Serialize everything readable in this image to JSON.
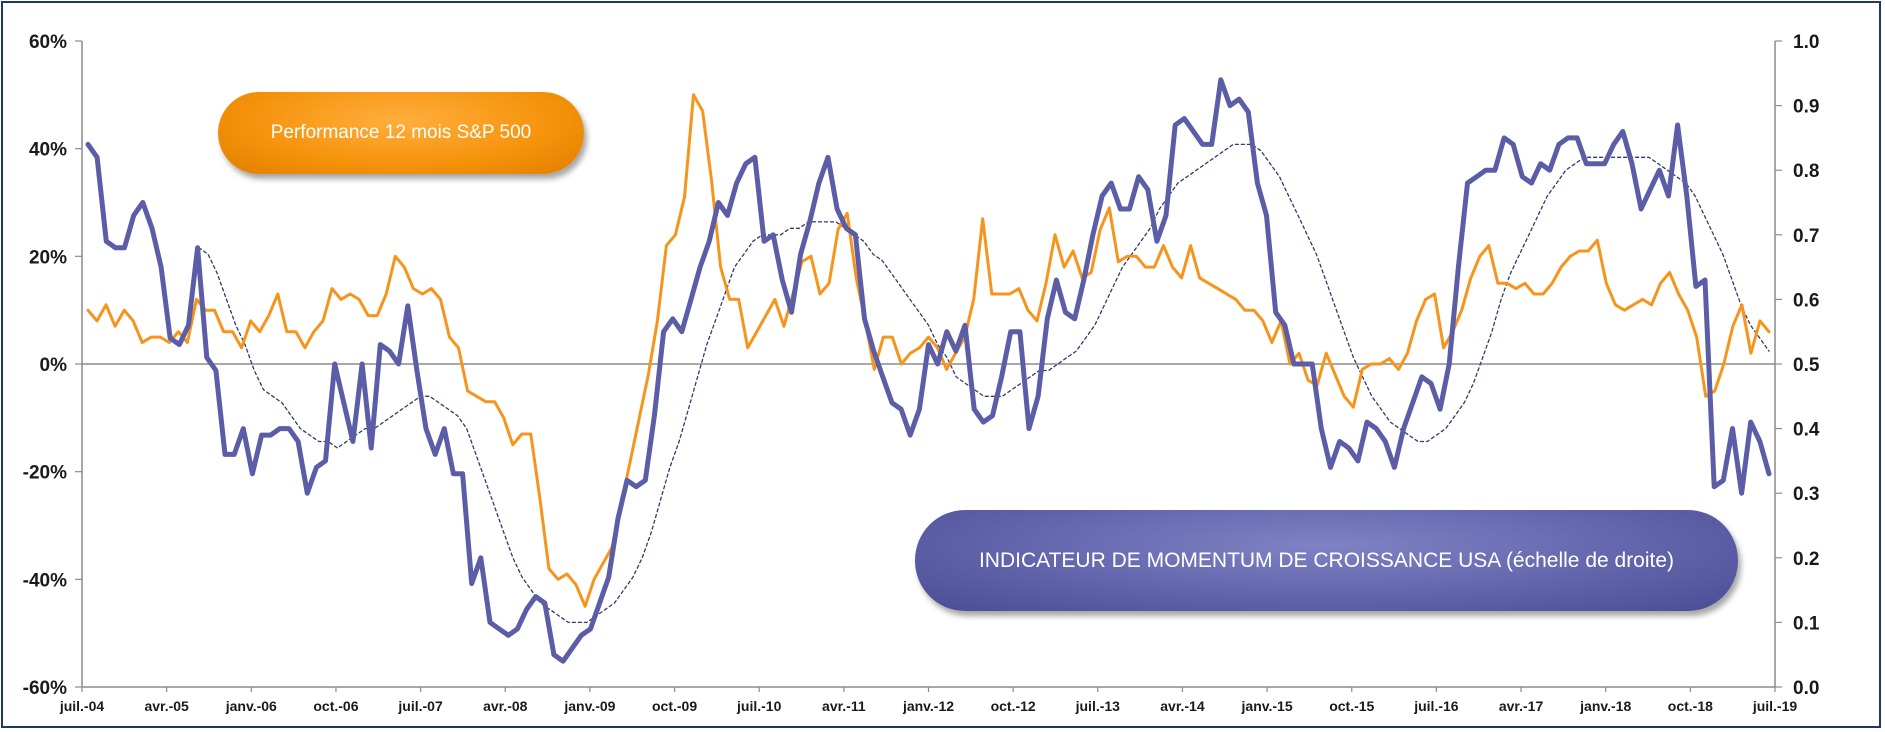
{
  "chart_data": {
    "type": "line",
    "left_axis": {
      "ticks": [
        "60%",
        "40%",
        "20%",
        "0%",
        "-20%",
        "-40%",
        "-60%"
      ],
      "min": -0.6,
      "max": 0.6
    },
    "right_axis": {
      "ticks": [
        "1.0",
        "0.9",
        "0.8",
        "0.7",
        "0.6",
        "0.5",
        "0.4",
        "0.3",
        "0.2",
        "0.1",
        "0.0"
      ],
      "min": 0.0,
      "max": 1.0
    },
    "x_ticks": [
      "juil.-04",
      "avr.-05",
      "janv.-06",
      "oct.-06",
      "juil.-07",
      "avr.-08",
      "janv.-09",
      "oct.-09",
      "juil.-10",
      "avr.-11",
      "janv.-12",
      "oct.-12",
      "juil.-13",
      "avr.-14",
      "janv.-15",
      "oct.-15",
      "juil.-16",
      "avr.-17",
      "janv.-18",
      "oct.-18",
      "juil.-19"
    ],
    "grid": false,
    "series": [
      {
        "name": "Performance 12 mois S&P 500",
        "axis": "left",
        "color": "#f7941d",
        "values": [
          10,
          8,
          11,
          7,
          10,
          8,
          4,
          5,
          5,
          4,
          6,
          4,
          12,
          10,
          10,
          6,
          6,
          3,
          8,
          6,
          9,
          13,
          6,
          6,
          3,
          6,
          8,
          14,
          12,
          13,
          12,
          9,
          9,
          13,
          20,
          18,
          14,
          13,
          14,
          12,
          5,
          3,
          -5,
          -6,
          -7,
          -7,
          -10,
          -15,
          -13,
          -13,
          -25,
          -38,
          -40,
          -39,
          -41,
          -45,
          -40,
          -37,
          -34,
          -26,
          -18,
          -10,
          -2,
          8,
          22,
          24,
          31,
          50,
          47,
          34,
          18,
          12,
          12,
          3,
          6,
          9,
          12,
          7,
          13,
          19,
          20,
          13,
          15,
          25,
          28,
          16,
          8,
          -1,
          5,
          5,
          0,
          2,
          3,
          5,
          3,
          -1,
          2,
          5,
          12,
          27,
          13,
          13,
          13,
          14,
          10,
          8,
          15,
          24,
          18,
          21,
          16,
          17,
          25,
          29,
          19,
          20,
          20,
          18,
          18,
          22,
          18,
          16,
          22,
          16,
          15,
          14,
          13,
          12,
          10,
          10,
          8,
          4,
          8,
          0,
          2,
          -3,
          -4,
          2,
          -2,
          -6,
          -8,
          -1,
          0,
          0,
          1,
          -1,
          2,
          8,
          12,
          13,
          3,
          6,
          10,
          16,
          20,
          22,
          15,
          15,
          14,
          15,
          13,
          13,
          15,
          18,
          20,
          21,
          21,
          23,
          15,
          11,
          10,
          11,
          12,
          11,
          15,
          17,
          13,
          10,
          5,
          -6,
          -5,
          0,
          7,
          11,
          2,
          8,
          6
        ]
      },
      {
        "name": "INDICATEUR DE MOMENTUM DE CROISSANCE USA (échelle de droite)",
        "axis": "right",
        "color": "#5b5ea6",
        "values": [
          0.84,
          0.82,
          0.69,
          0.68,
          0.68,
          0.73,
          0.75,
          0.71,
          0.65,
          0.54,
          0.53,
          0.56,
          0.68,
          0.51,
          0.49,
          0.36,
          0.36,
          0.4,
          0.33,
          0.39,
          0.39,
          0.4,
          0.4,
          0.38,
          0.3,
          0.34,
          0.35,
          0.5,
          0.44,
          0.38,
          0.5,
          0.37,
          0.53,
          0.52,
          0.5,
          0.59,
          0.49,
          0.4,
          0.36,
          0.4,
          0.33,
          0.33,
          0.16,
          0.2,
          0.1,
          0.09,
          0.08,
          0.09,
          0.12,
          0.14,
          0.13,
          0.05,
          0.04,
          0.06,
          0.08,
          0.09,
          0.13,
          0.17,
          0.26,
          0.32,
          0.31,
          0.32,
          0.42,
          0.55,
          0.57,
          0.55,
          0.6,
          0.65,
          0.69,
          0.75,
          0.73,
          0.78,
          0.81,
          0.82,
          0.69,
          0.7,
          0.63,
          0.58,
          0.67,
          0.72,
          0.78,
          0.82,
          0.74,
          0.71,
          0.7,
          0.57,
          0.52,
          0.48,
          0.44,
          0.43,
          0.39,
          0.43,
          0.53,
          0.5,
          0.55,
          0.52,
          0.56,
          0.43,
          0.41,
          0.42,
          0.48,
          0.55,
          0.55,
          0.4,
          0.45,
          0.57,
          0.63,
          0.58,
          0.57,
          0.63,
          0.7,
          0.76,
          0.78,
          0.74,
          0.74,
          0.79,
          0.77,
          0.69,
          0.73,
          0.87,
          0.88,
          0.86,
          0.84,
          0.84,
          0.94,
          0.9,
          0.91,
          0.89,
          0.78,
          0.73,
          0.58,
          0.56,
          0.5,
          0.5,
          0.5,
          0.4,
          0.34,
          0.38,
          0.37,
          0.35,
          0.41,
          0.4,
          0.38,
          0.34,
          0.4,
          0.44,
          0.48,
          0.47,
          0.43,
          0.5,
          0.65,
          0.78,
          0.79,
          0.8,
          0.8,
          0.85,
          0.84,
          0.79,
          0.78,
          0.81,
          0.8,
          0.84,
          0.85,
          0.85,
          0.81,
          0.81,
          0.81,
          0.84,
          0.86,
          0.81,
          0.74,
          0.77,
          0.8,
          0.76,
          0.87,
          0.76,
          0.62,
          0.63,
          0.31,
          0.32,
          0.4,
          0.3,
          0.41,
          0.38,
          0.33
        ]
      },
      {
        "name": "moving-average",
        "axis": "right",
        "color": "#2f3b6b",
        "dashed": true,
        "values": [
          null,
          null,
          null,
          null,
          null,
          null,
          null,
          null,
          null,
          null,
          null,
          null,
          0.68,
          0.67,
          0.64,
          0.6,
          0.56,
          0.53,
          0.49,
          0.46,
          0.45,
          0.44,
          0.42,
          0.4,
          0.39,
          0.38,
          0.38,
          0.37,
          0.38,
          0.39,
          0.4,
          0.4,
          0.41,
          0.42,
          0.43,
          0.44,
          0.45,
          0.45,
          0.44,
          0.43,
          0.42,
          0.4,
          0.36,
          0.32,
          0.28,
          0.24,
          0.2,
          0.17,
          0.15,
          0.13,
          0.12,
          0.11,
          0.1,
          0.1,
          0.1,
          0.11,
          0.12,
          0.13,
          0.15,
          0.17,
          0.2,
          0.24,
          0.29,
          0.34,
          0.38,
          0.43,
          0.48,
          0.53,
          0.57,
          0.61,
          0.65,
          0.67,
          0.69,
          0.7,
          0.7,
          0.7,
          0.71,
          0.71,
          0.72,
          0.72,
          0.72,
          0.72,
          0.71,
          0.7,
          0.69,
          0.67,
          0.66,
          0.64,
          0.62,
          0.6,
          0.58,
          0.56,
          0.53,
          0.51,
          0.48,
          0.47,
          0.46,
          0.45,
          0.45,
          0.45,
          0.46,
          0.47,
          0.48,
          0.49,
          0.49,
          0.5,
          0.51,
          0.52,
          0.54,
          0.56,
          0.59,
          0.62,
          0.65,
          0.67,
          0.69,
          0.71,
          0.74,
          0.76,
          0.78,
          0.79,
          0.8,
          0.81,
          0.82,
          0.83,
          0.84,
          0.84,
          0.84,
          0.83,
          0.81,
          0.79,
          0.76,
          0.73,
          0.7,
          0.67,
          0.63,
          0.59,
          0.55,
          0.51,
          0.48,
          0.45,
          0.43,
          0.41,
          0.4,
          0.39,
          0.38,
          0.38,
          0.39,
          0.4,
          0.42,
          0.44,
          0.47,
          0.51,
          0.55,
          0.6,
          0.64,
          0.67,
          0.7,
          0.73,
          0.76,
          0.78,
          0.8,
          0.81,
          0.82,
          0.82,
          0.82,
          0.82,
          0.82,
          0.82,
          0.82,
          0.82,
          0.81,
          0.8,
          0.79,
          0.78,
          0.76,
          0.73,
          0.7,
          0.67,
          0.63,
          0.59,
          0.56,
          0.54,
          0.52
        ]
      }
    ]
  },
  "callouts": {
    "sp500": "Performance 12 mois S&P 500",
    "momentum": "INDICATEUR DE MOMENTUM DE CROISSANCE USA (échelle de droite)"
  }
}
